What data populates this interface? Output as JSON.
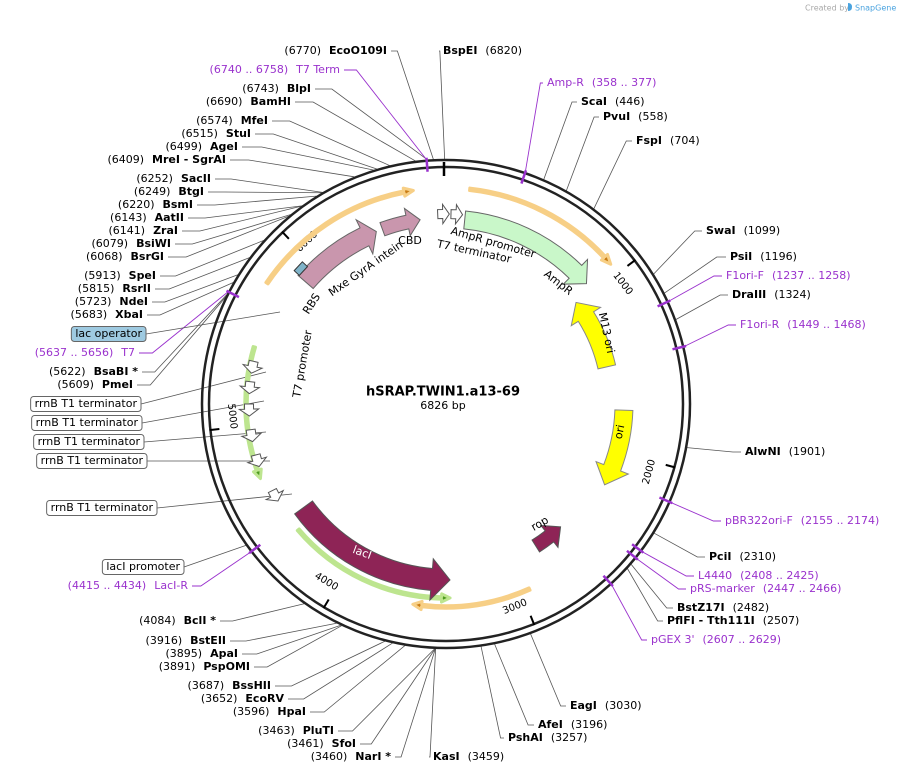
{
  "credit": {
    "prefix": "Created by",
    "brand": "SnapGene"
  },
  "plasmid": {
    "name": "hSRAP.TWIN1.a13-69",
    "length": "6826 bp"
  },
  "ticks": [
    1000,
    2000,
    3000,
    4000,
    5000,
    6000
  ],
  "features": [
    {
      "label": "CBD"
    },
    {
      "label": "Mxe GyrA intein"
    },
    {
      "label": "RBS"
    },
    {
      "label": "T7 terminator"
    },
    {
      "label": "AmpR promoter"
    },
    {
      "label": "AmpR"
    },
    {
      "label": "M13 ori"
    },
    {
      "label": "ori"
    },
    {
      "label": "T7 promoter"
    },
    {
      "label": "lacI"
    },
    {
      "label": "rop"
    }
  ],
  "boxed_features": [
    {
      "label": "lac operator"
    },
    {
      "label": "rrnB T1 terminator"
    },
    {
      "label": "rrnB T1 terminator"
    },
    {
      "label": "rrnB T1 terminator"
    },
    {
      "label": "rrnB T1 terminator"
    },
    {
      "label": "rrnB T1 terminator"
    },
    {
      "label": "lacI promoter"
    }
  ],
  "sites": [
    {
      "name": "EcoO109I",
      "position": "(6770)"
    },
    {
      "name": "BspEI",
      "position": "(6820)"
    },
    {
      "name": "BlpI",
      "position": "(6743)"
    },
    {
      "name": "BamHI",
      "position": "(6690)"
    },
    {
      "name": "MfeI",
      "position": "(6574)"
    },
    {
      "name": "StuI",
      "position": "(6515)"
    },
    {
      "name": "AgeI",
      "position": "(6499)"
    },
    {
      "name": "MreI - SgrAI",
      "position": "(6409)"
    },
    {
      "name": "SacII",
      "position": "(6252)"
    },
    {
      "name": "BtgI",
      "position": "(6249)"
    },
    {
      "name": "BsmI",
      "position": "(6220)"
    },
    {
      "name": "AatII",
      "position": "(6143)"
    },
    {
      "name": "ZraI",
      "position": "(6141)"
    },
    {
      "name": "BsiWI",
      "position": "(6079)"
    },
    {
      "name": "BsrGI",
      "position": "(6068)"
    },
    {
      "name": "SpeI",
      "position": "(5913)"
    },
    {
      "name": "RsrII",
      "position": "(5815)"
    },
    {
      "name": "NdeI",
      "position": "(5723)"
    },
    {
      "name": "XbaI",
      "position": "(5683)"
    },
    {
      "name": "BsaBI *",
      "position": "(5622)"
    },
    {
      "name": "PmeI",
      "position": "(5609)"
    },
    {
      "name": "BclI *",
      "position": "(4084)"
    },
    {
      "name": "BstEII",
      "position": "(3916)"
    },
    {
      "name": "ApaI",
      "position": "(3895)"
    },
    {
      "name": "PspOMI",
      "position": "(3891)"
    },
    {
      "name": "BssHII",
      "position": "(3687)"
    },
    {
      "name": "EcoRV",
      "position": "(3652)"
    },
    {
      "name": "HpaI",
      "position": "(3596)"
    },
    {
      "name": "PluTI",
      "position": "(3463)"
    },
    {
      "name": "SfoI",
      "position": "(3461)"
    },
    {
      "name": "NarI *",
      "position": "(3460)"
    },
    {
      "name": "KasI",
      "position": "(3459)"
    },
    {
      "name": "PshAI",
      "position": "(3257)"
    },
    {
      "name": "AfeI",
      "position": "(3196)"
    },
    {
      "name": "EagI",
      "position": "(3030)"
    },
    {
      "name": "PflFI - Tth111I",
      "position": "(2507)"
    },
    {
      "name": "BstZ17I",
      "position": "(2482)"
    },
    {
      "name": "PciI",
      "position": "(2310)"
    },
    {
      "name": "AlwNI",
      "position": "(1901)"
    },
    {
      "name": "DraIII",
      "position": "(1324)"
    },
    {
      "name": "PsiI",
      "position": "(1196)"
    },
    {
      "name": "SwaI",
      "position": "(1099)"
    },
    {
      "name": "FspI",
      "position": "(704)"
    },
    {
      "name": "PvuI",
      "position": "(558)"
    },
    {
      "name": "ScaI",
      "position": "(446)"
    }
  ],
  "primers": [
    {
      "name": "T7 Term",
      "range": "(6740 .. 6758)"
    },
    {
      "name": "T7",
      "range": "(5637 .. 5656)"
    },
    {
      "name": "LacI-R",
      "range": "(4415 .. 4434)"
    },
    {
      "name": "pGEX 3'",
      "range": "(2607 .. 2629)"
    },
    {
      "name": "pRS-marker",
      "range": "(2447 .. 2466)"
    },
    {
      "name": "L4440",
      "range": "(2408 .. 2425)"
    },
    {
      "name": "pBR322ori-F",
      "range": "(2155 .. 2174)"
    },
    {
      "name": "F1ori-R",
      "range": "(1449 .. 1468)"
    },
    {
      "name": "F1ori-F",
      "range": "(1237 .. 1258)"
    },
    {
      "name": "Amp-R",
      "range": "(358 .. 377)"
    }
  ]
}
